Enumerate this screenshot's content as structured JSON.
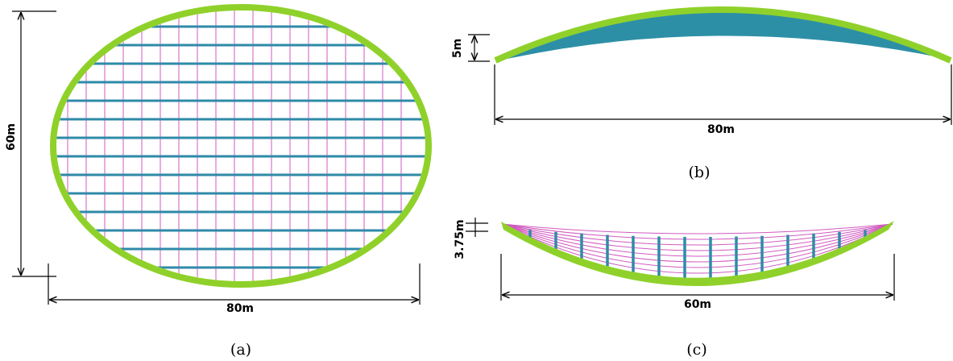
{
  "panels": [
    {
      "caption": "(a)",
      "dimensions": [
        "60m",
        "80m"
      ]
    },
    {
      "caption": "(b)",
      "dimensions": [
        "5m",
        "80m"
      ]
    },
    {
      "caption": "(c)",
      "dimensions": [
        "3.75m",
        "60m"
      ]
    }
  ]
}
